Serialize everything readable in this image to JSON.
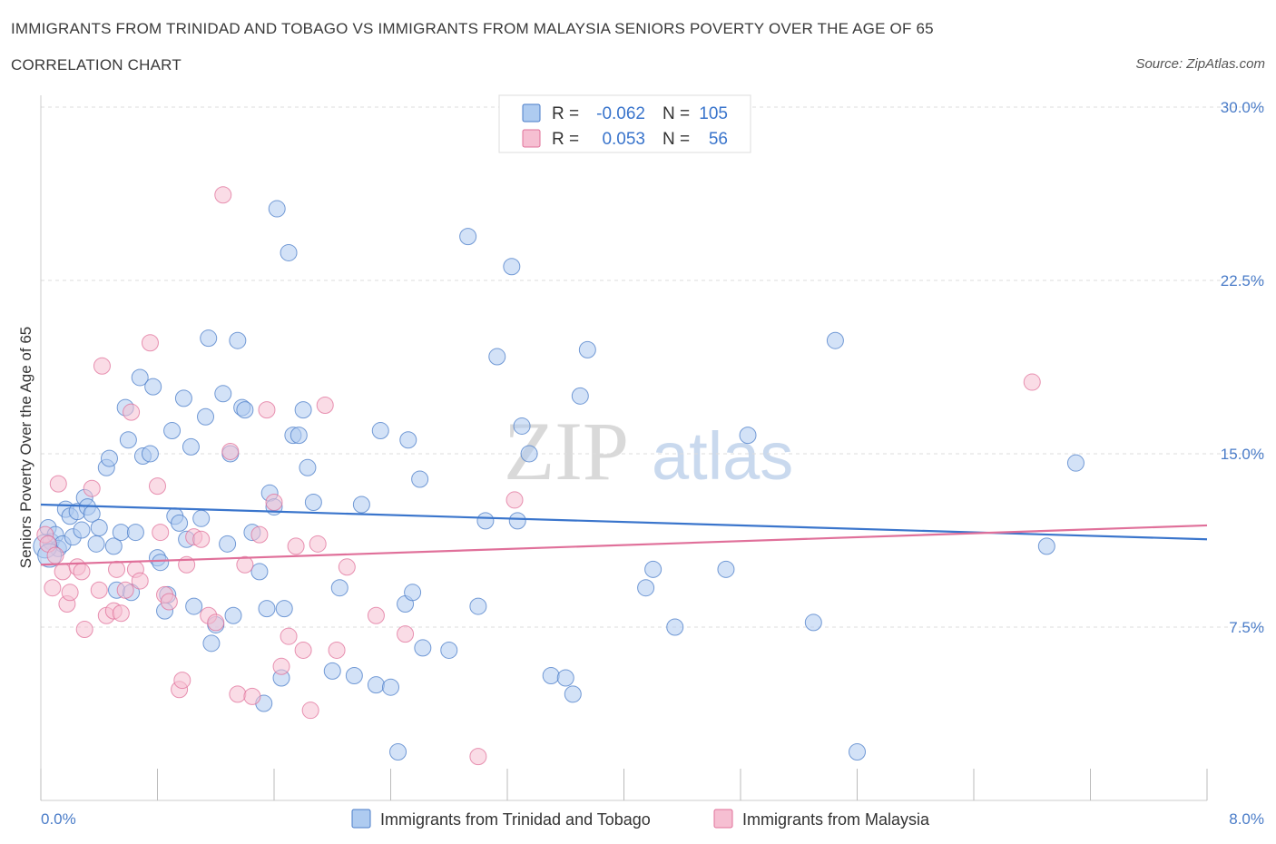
{
  "chart_data": {
    "type": "scatter",
    "title": "IMMIGRANTS FROM TRINIDAD AND TOBAGO VS IMMIGRANTS FROM MALAYSIA SENIORS POVERTY OVER THE AGE OF 65",
    "subtitle": "CORRELATION CHART",
    "source": "Source: ZipAtlas.com",
    "ylabel": "Seniors Poverty Over the Age of 65",
    "xlim": [
      0,
      8
    ],
    "ylim": [
      0,
      30
    ],
    "x_tick_labels": [
      "0.0%",
      "8.0%"
    ],
    "y_ticks": [
      7.5,
      15,
      22.5,
      30
    ],
    "y_tick_labels": [
      "7.5%",
      "15.0%",
      "22.5%",
      "30.0%"
    ],
    "watermark": {
      "zip": "ZIP",
      "atlas": "atlas"
    },
    "stats": [
      {
        "r_label": "R =",
        "r": "-0.062",
        "n_label": "N =",
        "n": "105"
      },
      {
        "r_label": "R =",
        "r": "0.053",
        "n_label": "N =",
        "n": "56"
      }
    ],
    "series": [
      {
        "name": "Immigrants from Trinidad and Tobago",
        "color": "#4a7cc8",
        "fill": "#aecbf0",
        "trend": {
          "x": [
            0,
            8
          ],
          "y": [
            12.8,
            11.3
          ]
        },
        "points": [
          [
            0.05,
            11.8
          ],
          [
            0.07,
            11.2
          ],
          [
            0.1,
            11.5
          ],
          [
            0.12,
            10.9
          ],
          [
            0.15,
            11.1
          ],
          [
            0.17,
            12.6
          ],
          [
            0.2,
            12.3
          ],
          [
            0.22,
            11.4
          ],
          [
            0.25,
            12.5
          ],
          [
            0.28,
            11.7
          ],
          [
            0.3,
            13.1
          ],
          [
            0.32,
            12.7
          ],
          [
            0.35,
            12.4
          ],
          [
            0.38,
            11.1
          ],
          [
            0.4,
            11.8
          ],
          [
            0.45,
            14.4
          ],
          [
            0.47,
            14.8
          ],
          [
            0.5,
            11
          ],
          [
            0.52,
            9.1
          ],
          [
            0.55,
            11.6
          ],
          [
            0.58,
            17
          ],
          [
            0.6,
            15.6
          ],
          [
            0.62,
            9
          ],
          [
            0.65,
            11.6
          ],
          [
            0.68,
            18.3
          ],
          [
            0.7,
            14.9
          ],
          [
            0.75,
            15
          ],
          [
            0.77,
            17.9
          ],
          [
            0.8,
            10.5
          ],
          [
            0.82,
            10.3
          ],
          [
            0.85,
            8.2
          ],
          [
            0.87,
            8.9
          ],
          [
            0.9,
            16
          ],
          [
            0.92,
            12.3
          ],
          [
            0.95,
            12
          ],
          [
            0.98,
            17.4
          ],
          [
            1,
            11.3
          ],
          [
            1.03,
            15.3
          ],
          [
            1.05,
            8.4
          ],
          [
            1.1,
            12.2
          ],
          [
            1.13,
            16.6
          ],
          [
            1.15,
            20
          ],
          [
            1.17,
            6.8
          ],
          [
            1.2,
            7.6
          ],
          [
            1.25,
            17.6
          ],
          [
            1.28,
            11.1
          ],
          [
            1.3,
            15
          ],
          [
            1.32,
            8
          ],
          [
            1.35,
            19.9
          ],
          [
            1.38,
            17
          ],
          [
            1.4,
            16.9
          ],
          [
            1.45,
            11.6
          ],
          [
            1.5,
            9.9
          ],
          [
            1.53,
            4.2
          ],
          [
            1.55,
            8.3
          ],
          [
            1.57,
            13.3
          ],
          [
            1.6,
            12.7
          ],
          [
            1.62,
            25.6
          ],
          [
            1.65,
            5.3
          ],
          [
            1.67,
            8.3
          ],
          [
            1.7,
            23.7
          ],
          [
            1.73,
            15.8
          ],
          [
            1.77,
            15.8
          ],
          [
            1.8,
            16.9
          ],
          [
            1.83,
            14.4
          ],
          [
            1.87,
            12.9
          ],
          [
            2,
            5.6
          ],
          [
            2.05,
            9.2
          ],
          [
            2.15,
            5.4
          ],
          [
            2.2,
            12.8
          ],
          [
            2.3,
            5
          ],
          [
            2.33,
            16
          ],
          [
            2.4,
            4.9
          ],
          [
            2.45,
            2.1
          ],
          [
            2.5,
            8.5
          ],
          [
            2.52,
            15.6
          ],
          [
            2.55,
            9
          ],
          [
            2.6,
            13.9
          ],
          [
            2.62,
            6.6
          ],
          [
            2.8,
            6.5
          ],
          [
            2.93,
            24.4
          ],
          [
            3,
            8.4
          ],
          [
            3.05,
            12.1
          ],
          [
            3.13,
            19.2
          ],
          [
            3.23,
            23.1
          ],
          [
            3.27,
            12.1
          ],
          [
            3.3,
            16.2
          ],
          [
            3.35,
            15
          ],
          [
            3.5,
            5.4
          ],
          [
            3.6,
            5.3
          ],
          [
            3.65,
            4.6
          ],
          [
            3.7,
            17.5
          ],
          [
            3.75,
            19.5
          ],
          [
            4.15,
            9.2
          ],
          [
            4.2,
            10
          ],
          [
            4.35,
            7.5
          ],
          [
            4.7,
            10
          ],
          [
            4.85,
            15.8
          ],
          [
            5.3,
            7.7
          ],
          [
            5.45,
            19.9
          ],
          [
            5.6,
            2.1
          ],
          [
            6.9,
            11
          ],
          [
            7.1,
            14.6
          ],
          [
            0.03,
            11
          ],
          [
            0.06,
            10.6
          ]
        ]
      },
      {
        "name": "Immigrants from Malaysia",
        "color": "#e0709a",
        "fill": "#f6bfd2",
        "trend": {
          "x": [
            0,
            8
          ],
          "y": [
            10.2,
            11.9
          ]
        },
        "points": [
          [
            0.03,
            11.5
          ],
          [
            0.05,
            11.1
          ],
          [
            0.08,
            9.2
          ],
          [
            0.1,
            10.6
          ],
          [
            0.12,
            13.7
          ],
          [
            0.15,
            9.9
          ],
          [
            0.18,
            8.5
          ],
          [
            0.2,
            9
          ],
          [
            0.25,
            10.1
          ],
          [
            0.28,
            9.9
          ],
          [
            0.3,
            7.4
          ],
          [
            0.35,
            13.5
          ],
          [
            0.4,
            9.1
          ],
          [
            0.42,
            18.8
          ],
          [
            0.45,
            8
          ],
          [
            0.5,
            8.2
          ],
          [
            0.52,
            10
          ],
          [
            0.55,
            8.1
          ],
          [
            0.58,
            9.1
          ],
          [
            0.62,
            16.8
          ],
          [
            0.65,
            10
          ],
          [
            0.68,
            9.5
          ],
          [
            0.75,
            19.8
          ],
          [
            0.8,
            13.6
          ],
          [
            0.82,
            11.6
          ],
          [
            0.85,
            8.9
          ],
          [
            0.88,
            8.6
          ],
          [
            0.95,
            4.8
          ],
          [
            0.97,
            5.2
          ],
          [
            1,
            10.2
          ],
          [
            1.05,
            11.4
          ],
          [
            1.1,
            11.3
          ],
          [
            1.15,
            8
          ],
          [
            1.2,
            7.7
          ],
          [
            1.25,
            26.2
          ],
          [
            1.3,
            15.1
          ],
          [
            1.35,
            4.6
          ],
          [
            1.4,
            10.2
          ],
          [
            1.45,
            4.5
          ],
          [
            1.5,
            11.5
          ],
          [
            1.55,
            16.9
          ],
          [
            1.6,
            12.9
          ],
          [
            1.65,
            5.8
          ],
          [
            1.7,
            7.1
          ],
          [
            1.75,
            11
          ],
          [
            1.8,
            6.5
          ],
          [
            1.85,
            3.9
          ],
          [
            1.9,
            11.1
          ],
          [
            1.95,
            17.1
          ],
          [
            2.03,
            6.5
          ],
          [
            2.1,
            10.1
          ],
          [
            2.3,
            8
          ],
          [
            2.5,
            7.2
          ],
          [
            3,
            1.9
          ],
          [
            3.25,
            13
          ],
          [
            6.8,
            18.1
          ]
        ]
      }
    ]
  }
}
